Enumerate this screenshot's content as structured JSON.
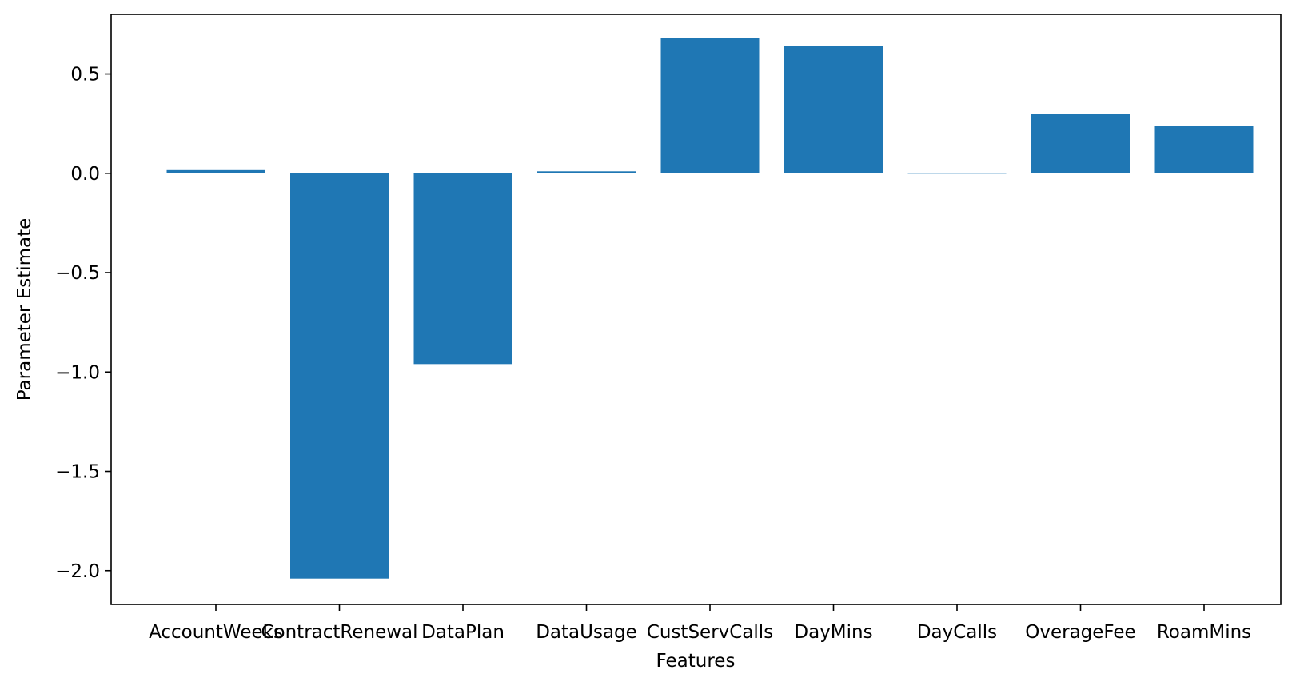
{
  "chart_data": {
    "type": "bar",
    "title": "",
    "xlabel": "Features",
    "ylabel": "Parameter Estimate",
    "categories": [
      "AccountWeeks",
      "ContractRenewal",
      "DataPlan",
      "DataUsage",
      "CustServCalls",
      "DayMins",
      "DayCalls",
      "OverageFee",
      "RoamMins"
    ],
    "values": [
      0.02,
      -2.04,
      -0.96,
      0.01,
      0.68,
      0.64,
      0.0,
      0.3,
      0.24
    ],
    "ylim": [
      -2.17,
      0.8
    ],
    "yticks": [
      0.5,
      0.0,
      -0.5,
      -1.0,
      -1.5,
      -2.0
    ],
    "ytick_labels": [
      "0.5",
      "0.0",
      "−0.5",
      "−1.0",
      "−1.5",
      "−2.0"
    ],
    "grid": false,
    "legend": "none",
    "bar_color": "#1f77b4"
  }
}
